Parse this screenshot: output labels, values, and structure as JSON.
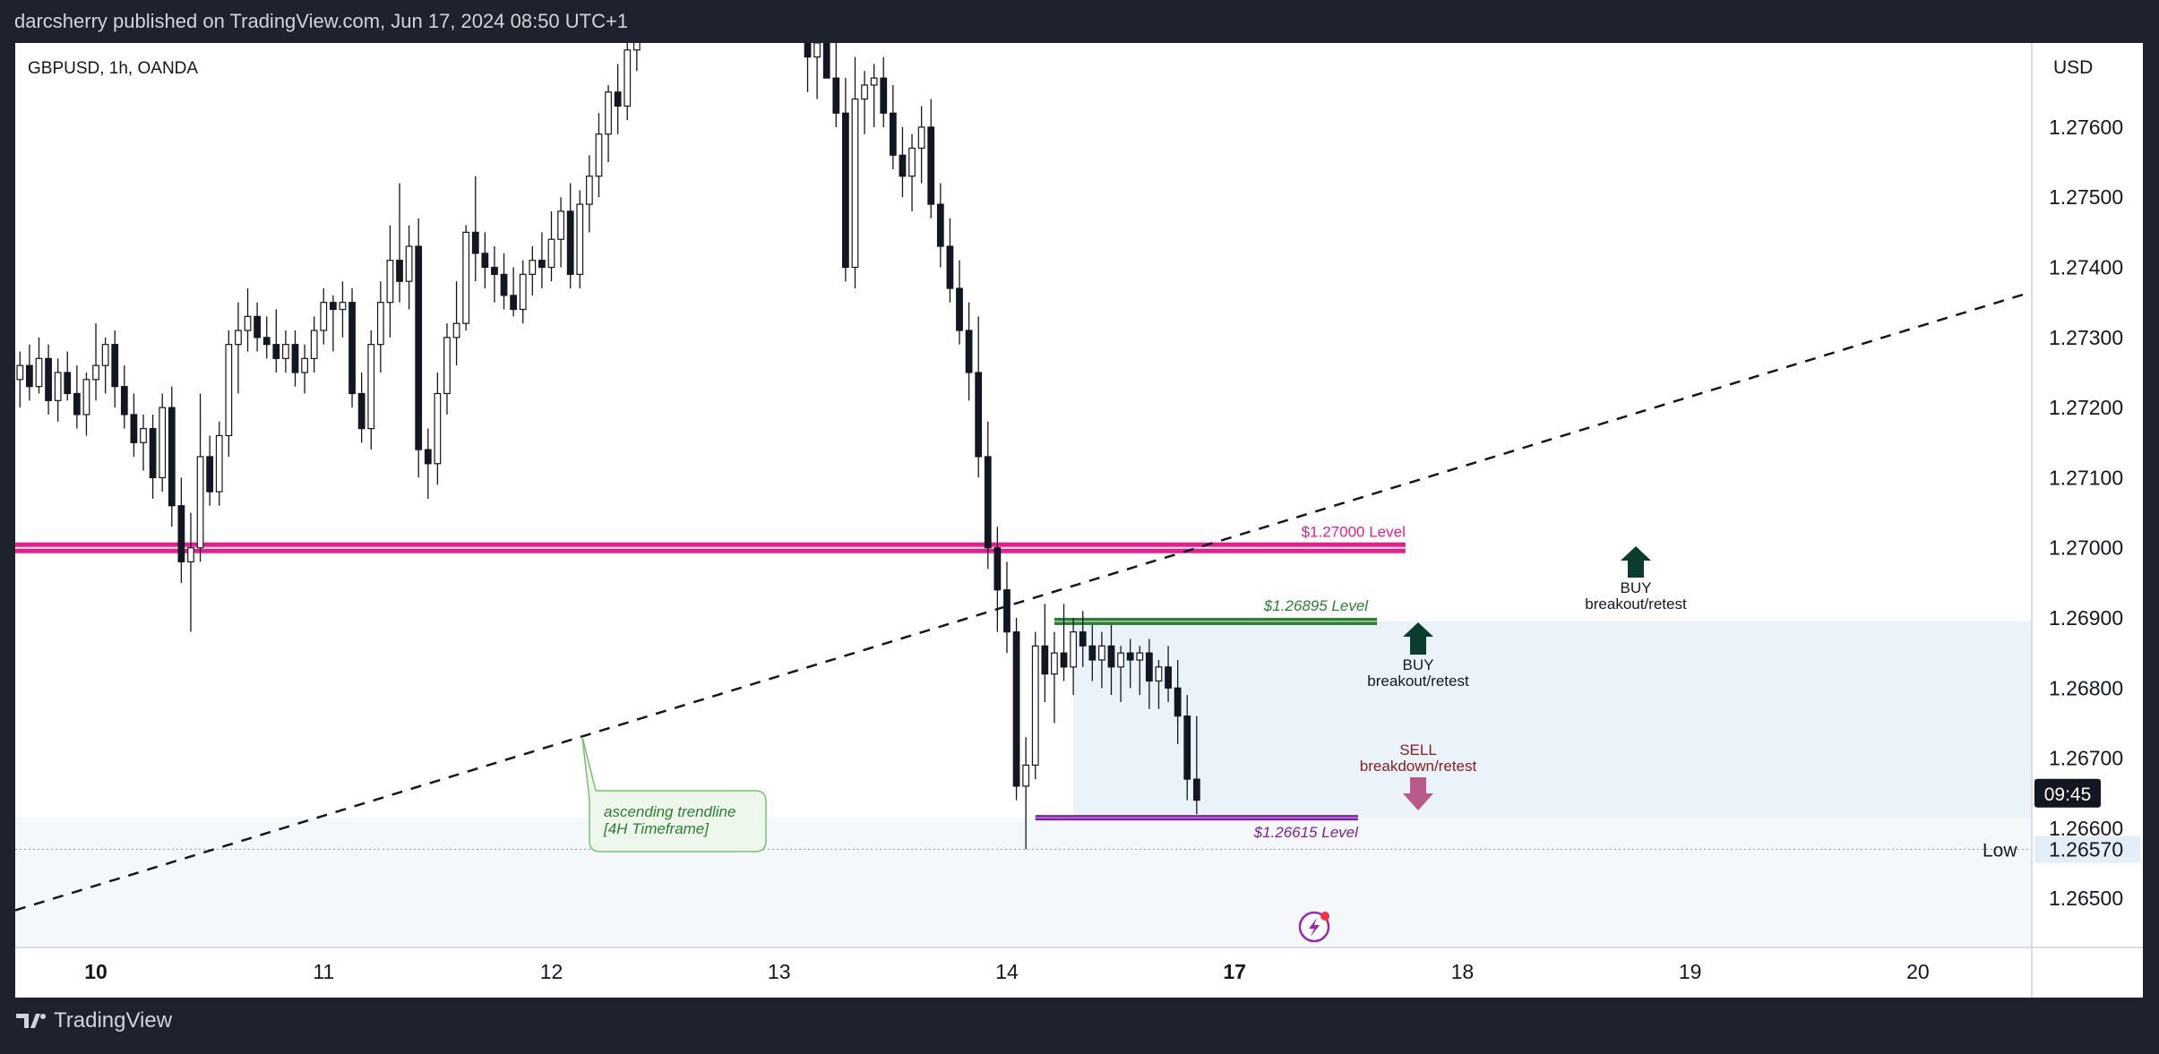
{
  "header": {
    "published_text": "darcsherry published on TradingView.com, Jun 17, 2024 08:50 UTC+1"
  },
  "footer": {
    "brand": "TradingView"
  },
  "colors": {
    "page_bg": "#1e222d",
    "pink": "#e91e8c",
    "green": "#2e7d32",
    "purple": "#7b1fa2",
    "sell_arrow": "#b85a8a",
    "buy_arrow": "#0b3d2e",
    "zone": "#e3eef8"
  },
  "chart_data": {
    "type": "candlestick",
    "symbol_label": "GBPUSD, 1h, OANDA",
    "currency": "USD",
    "ylim": [
      1.2643,
      1.2772
    ],
    "y_ticks": [
      "1.27600",
      "1.27500",
      "1.27400",
      "1.27300",
      "1.27200",
      "1.27100",
      "1.27000",
      "1.26900",
      "1.26800",
      "1.26700",
      "1.26600",
      "1.26500"
    ],
    "x_ticks": [
      {
        "label": "10",
        "t": 0,
        "bold": true
      },
      {
        "label": "11",
        "t": 24,
        "bold": false
      },
      {
        "label": "12",
        "t": 48,
        "bold": false
      },
      {
        "label": "13",
        "t": 72,
        "bold": false
      },
      {
        "label": "14",
        "t": 96,
        "bold": false
      },
      {
        "label": "17",
        "t": 120,
        "bold": true
      },
      {
        "label": "18",
        "t": 144,
        "bold": false
      },
      {
        "label": "19",
        "t": 168,
        "bold": false
      },
      {
        "label": "20",
        "t": 192,
        "bold": false
      }
    ],
    "x_range": [
      -8.5,
      204
    ],
    "candles": [
      [
        -8,
        1.2724,
        1.2728,
        1.272,
        1.2726
      ],
      [
        -7,
        1.2726,
        1.2729,
        1.2721,
        1.2723
      ],
      [
        -6,
        1.2723,
        1.273,
        1.2722,
        1.2727
      ],
      [
        -5,
        1.2727,
        1.2729,
        1.2719,
        1.2721
      ],
      [
        -4,
        1.2721,
        1.2727,
        1.2718,
        1.2725
      ],
      [
        -3,
        1.2725,
        1.2728,
        1.2721,
        1.2722
      ],
      [
        -2,
        1.2722,
        1.2726,
        1.2717,
        1.2719
      ],
      [
        -1,
        1.2719,
        1.2725,
        1.2716,
        1.2724
      ],
      [
        0,
        1.2724,
        1.2732,
        1.2721,
        1.2726
      ],
      [
        1,
        1.2726,
        1.273,
        1.2722,
        1.2729
      ],
      [
        2,
        1.2729,
        1.2731,
        1.272,
        1.2723
      ],
      [
        3,
        1.2723,
        1.2726,
        1.2717,
        1.2719
      ],
      [
        4,
        1.2719,
        1.2722,
        1.2713,
        1.2715
      ],
      [
        5,
        1.2715,
        1.2719,
        1.2711,
        1.2717
      ],
      [
        6,
        1.2717,
        1.2719,
        1.2707,
        1.271
      ],
      [
        7,
        1.271,
        1.2722,
        1.2708,
        1.272
      ],
      [
        8,
        1.272,
        1.2723,
        1.2703,
        1.2706
      ],
      [
        9,
        1.2706,
        1.271,
        1.2695,
        1.2698
      ],
      [
        10,
        1.2698,
        1.2705,
        1.2688,
        1.27
      ],
      [
        11,
        1.27,
        1.2722,
        1.2698,
        1.2713
      ],
      [
        12,
        1.2713,
        1.2716,
        1.2706,
        1.2708
      ],
      [
        13,
        1.2708,
        1.2718,
        1.2706,
        1.2716
      ],
      [
        14,
        1.2716,
        1.2731,
        1.2713,
        1.2729
      ],
      [
        15,
        1.2729,
        1.2735,
        1.2722,
        1.2731
      ],
      [
        16,
        1.2731,
        1.2737,
        1.2728,
        1.2733
      ],
      [
        17,
        1.2733,
        1.2735,
        1.2728,
        1.273
      ],
      [
        18,
        1.273,
        1.2733,
        1.2727,
        1.2729
      ],
      [
        19,
        1.2729,
        1.2734,
        1.2725,
        1.2727
      ],
      [
        20,
        1.2727,
        1.2731,
        1.2725,
        1.2729
      ],
      [
        21,
        1.2729,
        1.2731,
        1.2723,
        1.2725
      ],
      [
        22,
        1.2725,
        1.2729,
        1.2722,
        1.2727
      ],
      [
        23,
        1.2727,
        1.2733,
        1.2725,
        1.2731
      ],
      [
        24,
        1.2731,
        1.2737,
        1.2729,
        1.2735
      ],
      [
        25,
        1.2735,
        1.2736,
        1.2728,
        1.2734
      ],
      [
        26,
        1.2734,
        1.2738,
        1.273,
        1.2735
      ],
      [
        27,
        1.2735,
        1.2737,
        1.272,
        1.2722
      ],
      [
        28,
        1.2722,
        1.2725,
        1.2715,
        1.2717
      ],
      [
        29,
        1.2717,
        1.2731,
        1.2714,
        1.2729
      ],
      [
        30,
        1.2729,
        1.2738,
        1.2725,
        1.2735
      ],
      [
        31,
        1.2735,
        1.2746,
        1.273,
        1.2741
      ],
      [
        32,
        1.2741,
        1.2752,
        1.2735,
        1.2738
      ],
      [
        33,
        1.2738,
        1.2746,
        1.2734,
        1.2743
      ],
      [
        34,
        1.2743,
        1.2747,
        1.271,
        1.2714
      ],
      [
        35,
        1.2714,
        1.2717,
        1.2707,
        1.2712
      ],
      [
        36,
        1.2712,
        1.2725,
        1.2709,
        1.2722
      ],
      [
        37,
        1.2722,
        1.2732,
        1.2719,
        1.273
      ],
      [
        38,
        1.273,
        1.2738,
        1.2726,
        1.2732
      ],
      [
        39,
        1.2732,
        1.2746,
        1.2731,
        1.2745
      ],
      [
        40,
        1.2745,
        1.2753,
        1.2738,
        1.2742
      ],
      [
        41,
        1.2742,
        1.2745,
        1.2737,
        1.274
      ],
      [
        42,
        1.274,
        1.2743,
        1.2735,
        1.2739
      ],
      [
        43,
        1.2739,
        1.2742,
        1.2734,
        1.2736
      ],
      [
        44,
        1.2736,
        1.274,
        1.2733,
        1.2734
      ],
      [
        45,
        1.2734,
        1.2741,
        1.2732,
        1.2739
      ],
      [
        46,
        1.2739,
        1.2743,
        1.2736,
        1.2741
      ],
      [
        47,
        1.2741,
        1.2745,
        1.2737,
        1.274
      ],
      [
        48,
        1.274,
        1.2748,
        1.2738,
        1.2744
      ],
      [
        49,
        1.2744,
        1.275,
        1.274,
        1.2748
      ],
      [
        50,
        1.2748,
        1.2752,
        1.2737,
        1.2739
      ],
      [
        51,
        1.2739,
        1.2751,
        1.2737,
        1.2749
      ],
      [
        52,
        1.2749,
        1.2756,
        1.2745,
        1.2753
      ],
      [
        53,
        1.2753,
        1.2762,
        1.275,
        1.2759
      ],
      [
        54,
        1.2759,
        1.2766,
        1.2755,
        1.2765
      ],
      [
        55,
        1.2765,
        1.2769,
        1.2759,
        1.2763
      ],
      [
        56,
        1.2763,
        1.2772,
        1.2761,
        1.2771
      ],
      [
        57,
        1.2771,
        1.278,
        1.2768,
        1.2776
      ],
      [
        75,
        1.2775,
        1.2777,
        1.2765,
        1.277
      ],
      [
        76,
        1.277,
        1.2774,
        1.2764,
        1.2772
      ],
      [
        77,
        1.2772,
        1.2778,
        1.2768,
        1.2767
      ],
      [
        78,
        1.2767,
        1.2772,
        1.276,
        1.2762
      ],
      [
        79,
        1.2762,
        1.2767,
        1.2738,
        1.274
      ],
      [
        80,
        1.274,
        1.277,
        1.2737,
        1.2764
      ],
      [
        81,
        1.2764,
        1.2768,
        1.2759,
        1.2766
      ],
      [
        82,
        1.2766,
        1.2769,
        1.276,
        1.2767
      ],
      [
        83,
        1.2767,
        1.277,
        1.276,
        1.2762
      ],
      [
        84,
        1.2762,
        1.2766,
        1.2754,
        1.2756
      ],
      [
        85,
        1.2756,
        1.276,
        1.275,
        1.2753
      ],
      [
        86,
        1.2753,
        1.2759,
        1.2748,
        1.2757
      ],
      [
        87,
        1.2757,
        1.2763,
        1.2752,
        1.276
      ],
      [
        88,
        1.276,
        1.2764,
        1.2747,
        1.2749
      ],
      [
        89,
        1.2749,
        1.2752,
        1.274,
        1.2743
      ],
      [
        90,
        1.2743,
        1.2747,
        1.2735,
        1.2737
      ],
      [
        91,
        1.2737,
        1.2741,
        1.2729,
        1.2731
      ],
      [
        92,
        1.2731,
        1.2735,
        1.2721,
        1.2725
      ],
      [
        93,
        1.2725,
        1.2733,
        1.271,
        1.2713
      ],
      [
        94,
        1.2713,
        1.2718,
        1.2697,
        1.27
      ],
      [
        95,
        1.27,
        1.2703,
        1.2688,
        1.2694
      ],
      [
        96,
        1.2694,
        1.2698,
        1.2685,
        1.2688
      ],
      [
        97,
        1.2688,
        1.269,
        1.2664,
        1.2666
      ],
      [
        98,
        1.2666,
        1.2673,
        1.2657,
        1.2669
      ],
      [
        99,
        1.2669,
        1.2688,
        1.2667,
        1.2686
      ],
      [
        100,
        1.2686,
        1.2692,
        1.2678,
        1.2682
      ],
      [
        101,
        1.2682,
        1.2688,
        1.2675,
        1.2685
      ],
      [
        102,
        1.2685,
        1.2692,
        1.2681,
        1.2683
      ],
      [
        103,
        1.2683,
        1.269,
        1.2679,
        1.2688
      ],
      [
        104,
        1.2688,
        1.2691,
        1.2683,
        1.2686
      ],
      [
        105,
        1.2686,
        1.2689,
        1.2681,
        1.2684
      ],
      [
        106,
        1.2684,
        1.2688,
        1.268,
        1.2686
      ],
      [
        107,
        1.2686,
        1.2689,
        1.2679,
        1.2683
      ],
      [
        108,
        1.2683,
        1.2686,
        1.2678,
        1.2685
      ],
      [
        109,
        1.2685,
        1.2687,
        1.268,
        1.2684
      ],
      [
        110,
        1.2684,
        1.2686,
        1.2679,
        1.2685
      ],
      [
        111,
        1.2685,
        1.2687,
        1.2677,
        1.2681
      ],
      [
        112,
        1.2681,
        1.2684,
        1.2677,
        1.2683
      ],
      [
        113,
        1.2683,
        1.2686,
        1.2678,
        1.268
      ],
      [
        114,
        1.268,
        1.2684,
        1.2672,
        1.2676
      ],
      [
        115,
        1.2676,
        1.2679,
        1.2664,
        1.2667
      ],
      [
        116,
        1.2667,
        1.2676,
        1.2662,
        1.2664
      ]
    ],
    "levels": [
      {
        "name": "pink",
        "price": 1.27,
        "t_start": -8.5,
        "t_end": 138,
        "label": "$1.27000 Level"
      },
      {
        "name": "green",
        "price": 1.26895,
        "t_start": 101,
        "t_end": 135,
        "label": "$1.26895 Level"
      },
      {
        "name": "purple",
        "price": 1.26615,
        "t_start": 99,
        "t_end": 133,
        "label": "$1.26615 Level"
      }
    ],
    "current_price": {
      "price": 1.2665,
      "label": "09:45"
    },
    "low": {
      "price": 1.2657,
      "label": "Low",
      "value": "1.26570"
    },
    "trendline": {
      "t1": -8.5,
      "p1": 1.26483,
      "t2": 204,
      "p2": 1.27365,
      "label_line1": "ascending trendline",
      "label_line2": "[4H Timeframe]"
    },
    "zone": {
      "t_start": 103,
      "p_top": 1.26895,
      "p_bottom": 1.26615
    },
    "annotations": [
      {
        "type": "buy",
        "line1": "BUY",
        "line2": "breakout/retest"
      },
      {
        "type": "buy",
        "line1": "BUY",
        "line2": "breakout/retest"
      },
      {
        "type": "sell",
        "line1": "SELL",
        "line2": "breakdown/retest"
      }
    ]
  }
}
